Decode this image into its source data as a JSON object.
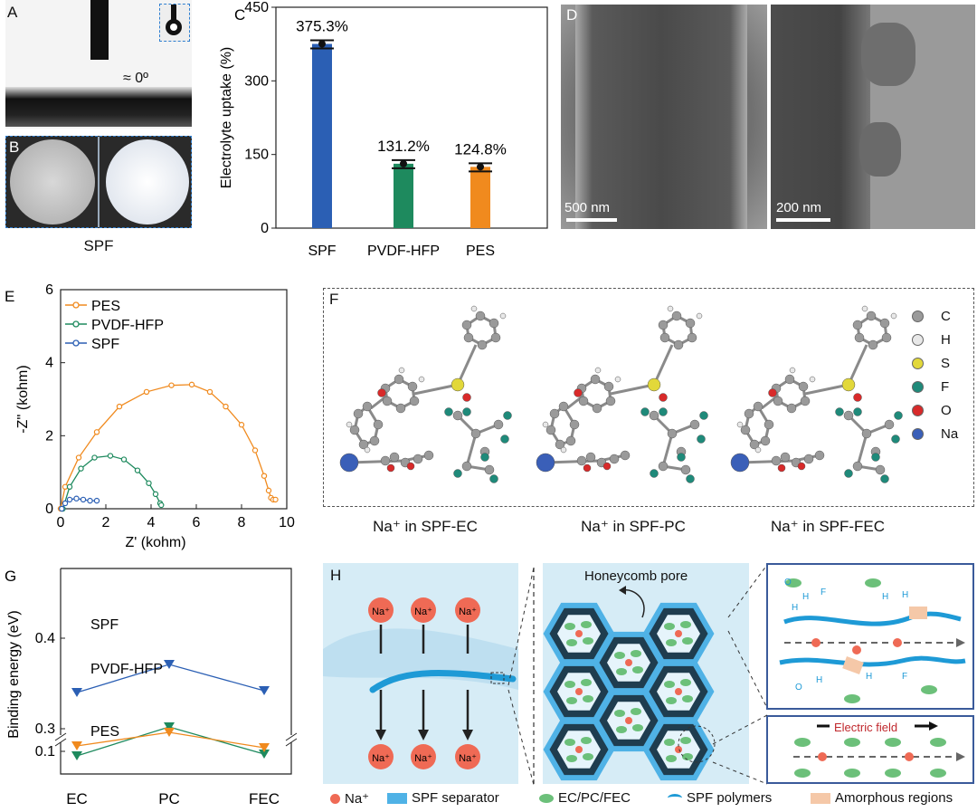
{
  "panels": {
    "a": {
      "label": "A",
      "angle": "≈ 0º"
    },
    "b": {
      "label": "B",
      "caption": "SPF"
    },
    "c": {
      "label": "C"
    },
    "d": {
      "label": "D",
      "scale_left": "500 nm",
      "scale_right": "200 nm"
    },
    "e": {
      "label": "E"
    },
    "f": {
      "label": "F",
      "legend": [
        {
          "label": "C",
          "color": "#9a9a9a"
        },
        {
          "label": "H",
          "color": "#e8e8e8"
        },
        {
          "label": "S",
          "color": "#e2d83a"
        },
        {
          "label": "F",
          "color": "#1f8a7a"
        },
        {
          "label": "O",
          "color": "#d82a2a"
        },
        {
          "label": "Na",
          "color": "#3a5fb8"
        }
      ],
      "captions": [
        "Na⁺ in SPF-EC",
        "Na⁺ in SPF-PC",
        "Na⁺ in SPF-FEC"
      ]
    },
    "g": {
      "label": "G"
    },
    "h": {
      "label": "H",
      "pore_label": "Honeycomb pore",
      "ion": "Na⁺",
      "field_label": "Electric field",
      "legend": [
        "Na⁺",
        "SPF separator",
        "EC/PC/FEC",
        "SPF polymers",
        "Amorphous regions"
      ],
      "bond_letters": {
        "h": "H",
        "f": "F",
        "o": "O"
      }
    }
  },
  "colors": {
    "spf": "#2b5fb4",
    "pvdf": "#1e8a5e",
    "pes": "#f08a1e",
    "bg_h": "#d6ecf6"
  },
  "chart_data": [
    {
      "id": "C",
      "type": "bar",
      "categories": [
        "SPF",
        "PVDF-HFP",
        "PES"
      ],
      "values": [
        375.3,
        131.2,
        124.8
      ],
      "data_labels": [
        "375.3%",
        "131.2%",
        "124.8%"
      ],
      "ylabel": "Electrolyte uptake (%)",
      "ylim": [
        0,
        450
      ],
      "yticks": [
        0,
        150,
        300,
        450
      ]
    },
    {
      "id": "E",
      "type": "line",
      "xlabel": "Z' (kohm)",
      "ylabel": "-Z'' (kohm)",
      "xlim": [
        0,
        10
      ],
      "ylim": [
        0,
        6
      ],
      "xticks": [
        0,
        2,
        4,
        6,
        8,
        10
      ],
      "yticks": [
        0,
        2,
        4,
        6
      ],
      "series": [
        {
          "name": "PES",
          "x": [
            0,
            0.2,
            0.8,
            1.6,
            2.6,
            3.8,
            4.9,
            5.8,
            6.6,
            7.3,
            8.0,
            8.6,
            9.0,
            9.2,
            9.3,
            9.4,
            9.5
          ],
          "y": [
            0,
            0.6,
            1.4,
            2.1,
            2.8,
            3.2,
            3.38,
            3.4,
            3.2,
            2.8,
            2.3,
            1.6,
            0.9,
            0.5,
            0.3,
            0.25,
            0.25
          ]
        },
        {
          "name": "PVDF-HFP",
          "x": [
            0.1,
            0.4,
            0.9,
            1.5,
            2.2,
            2.8,
            3.4,
            3.9,
            4.2,
            4.4,
            4.45
          ],
          "y": [
            0,
            0.6,
            1.1,
            1.4,
            1.45,
            1.35,
            1.05,
            0.7,
            0.4,
            0.15,
            0.1
          ]
        },
        {
          "name": "SPF",
          "x": [
            0.05,
            0.2,
            0.4,
            0.7,
            1.0,
            1.3,
            1.6
          ],
          "y": [
            0,
            0.15,
            0.25,
            0.28,
            0.25,
            0.22,
            0.22
          ]
        }
      ]
    },
    {
      "id": "G",
      "type": "line",
      "ylabel": "Binding energy (eV)",
      "categories": [
        "EC",
        "PC",
        "FEC"
      ],
      "yticks_upper": [
        0.3,
        0.4
      ],
      "yticks_lower": [
        0.1
      ],
      "series": [
        {
          "name": "SPF",
          "values": [
            0.34,
            0.371,
            0.342
          ]
        },
        {
          "name": "PVDF-HFP",
          "values": [
            0.27,
            0.302,
            0.272
          ]
        },
        {
          "name": "PES",
          "values": [
            0.106,
            0.121,
            0.104
          ]
        }
      ]
    }
  ]
}
